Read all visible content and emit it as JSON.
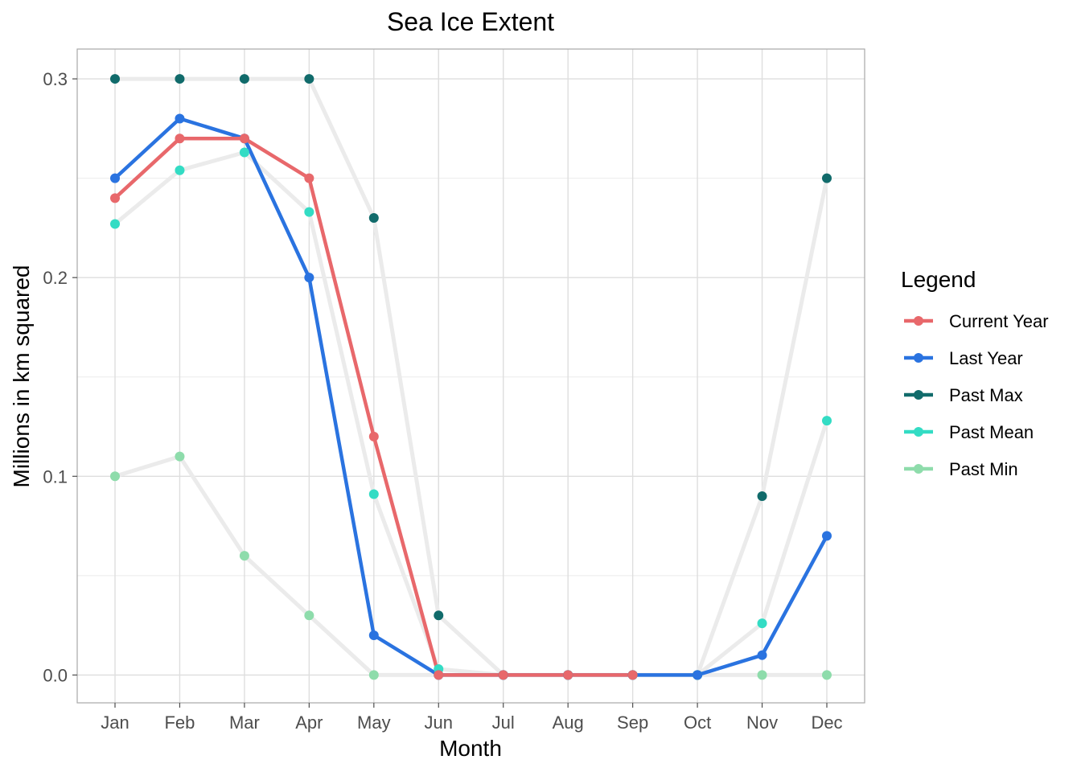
{
  "chart_data": {
    "type": "line",
    "title": "Sea Ice Extent",
    "xlabel": "Month",
    "ylabel": "Millions in km squared",
    "categories": [
      "Jan",
      "Feb",
      "Mar",
      "Apr",
      "May",
      "Jun",
      "Jul",
      "Aug",
      "Sep",
      "Oct",
      "Nov",
      "Dec"
    ],
    "ylim": [
      -0.014,
      0.315
    ],
    "yticks": [
      0.0,
      0.1,
      0.2,
      0.3
    ],
    "ytick_labels": [
      "0.0",
      "0.1",
      "0.2",
      "0.3"
    ],
    "grid": true,
    "legend": {
      "title": "Legend",
      "position": "right"
    },
    "background_line_color": "#ebebeb",
    "series": [
      {
        "name": "Current Year",
        "color": "#e8686b",
        "line": "colored",
        "values": [
          0.24,
          0.27,
          0.27,
          0.25,
          0.12,
          0.0,
          0.0,
          0.0,
          0.0,
          null,
          null,
          null
        ]
      },
      {
        "name": "Last Year",
        "color": "#2a73e0",
        "line": "colored",
        "values": [
          0.25,
          0.28,
          0.27,
          0.2,
          0.02,
          0.0,
          0.0,
          0.0,
          0.0,
          0.0,
          0.01,
          0.07
        ]
      },
      {
        "name": "Past Max",
        "color": "#116b6b",
        "line": "background",
        "values": [
          0.3,
          0.3,
          0.3,
          0.3,
          0.23,
          0.03,
          0.0,
          0.0,
          0.0,
          0.0,
          0.09,
          0.25
        ]
      },
      {
        "name": "Past Mean",
        "color": "#33dcc4",
        "line": "background",
        "values": [
          0.227,
          0.254,
          0.263,
          0.233,
          0.091,
          0.003,
          0.0,
          0.0,
          0.0,
          0.0,
          0.026,
          0.128
        ]
      },
      {
        "name": "Past Min",
        "color": "#8edcab",
        "line": "background",
        "values": [
          0.1,
          0.11,
          0.06,
          0.03,
          0.0,
          0.0,
          0.0,
          0.0,
          0.0,
          0.0,
          0.0,
          0.0
        ]
      }
    ]
  }
}
